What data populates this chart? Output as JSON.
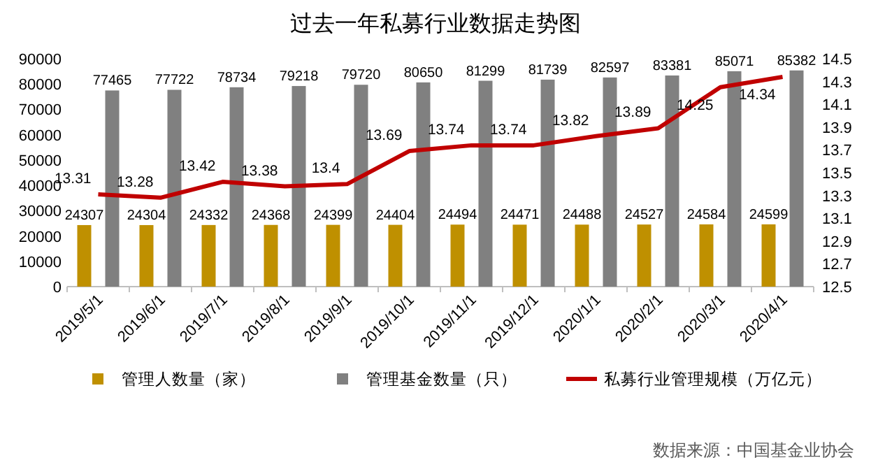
{
  "chart_data": {
    "type": "bar",
    "title": "过去一年私募行业数据走势图",
    "categories": [
      "2019/5/1",
      "2019/6/1",
      "2019/7/1",
      "2019/8/1",
      "2019/9/1",
      "2019/10/1",
      "2019/11/1",
      "2019/12/1",
      "2020/1/1",
      "2020/2/1",
      "2020/3/1",
      "2020/4/1"
    ],
    "series": [
      {
        "name": "管理人数量（家）",
        "color": "#bf9000",
        "values": [
          24307,
          24304,
          24332,
          24368,
          24399,
          24404,
          24494,
          24471,
          24488,
          24527,
          24584,
          24599
        ]
      },
      {
        "name": "管理基金数量（只）",
        "color": "#808080",
        "values": [
          77465,
          77722,
          78734,
          79218,
          79720,
          80650,
          81299,
          81739,
          82597,
          83381,
          85071,
          85382
        ]
      },
      {
        "name": "私募行业管理规模（万亿元）",
        "type": "line",
        "axis": "y2",
        "color": "#c00000",
        "values": [
          13.31,
          13.28,
          13.42,
          13.38,
          13.4,
          13.69,
          13.74,
          13.74,
          13.82,
          13.89,
          14.25,
          14.34
        ]
      }
    ],
    "ylim": [
      0,
      90000
    ],
    "yticks": [
      0,
      10000,
      20000,
      30000,
      40000,
      50000,
      60000,
      70000,
      80000,
      90000
    ],
    "y2lim": [
      12.5,
      14.5
    ],
    "y2ticks": [
      12.5,
      12.7,
      12.9,
      13.1,
      13.3,
      13.5,
      13.7,
      13.9,
      14.1,
      14.3,
      14.5
    ],
    "data_labels": true,
    "legend": "bottom",
    "marker": "none",
    "grid": false,
    "annotations": [
      "数据来源：中国基金业协会"
    ]
  }
}
